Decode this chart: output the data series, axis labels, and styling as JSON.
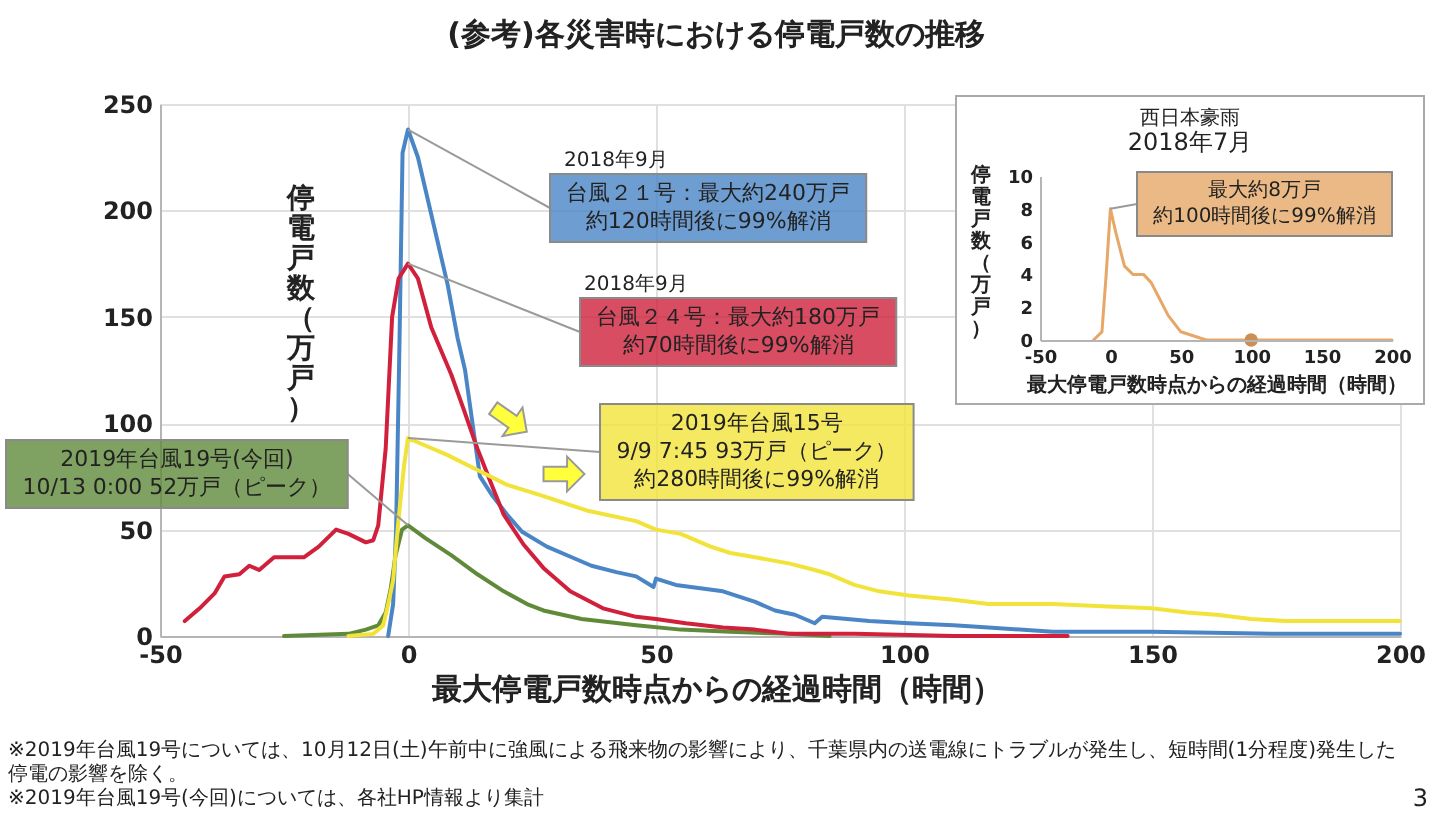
{
  "chart_data": [
    {
      "type": "line",
      "title": "(参考)各災害時における停電戸数の推移",
      "xlabel": "最大停電戸数時点からの経過時間（時間）",
      "ylabel": "停電戸数（万戸）",
      "xlim": [
        -50,
        200
      ],
      "xticks": [
        -50,
        0,
        50,
        100,
        150,
        200
      ],
      "ylim": [
        0,
        250
      ],
      "yticks": [
        0,
        50,
        100,
        150,
        200,
        250
      ],
      "grid": true,
      "annotations": [
        "2018年9月",
        "2018年9月",
        "※2019年台風19号については、10月12日(土)午前中に強風による飛来物の影響により、千葉県内の送電線にトラブルが発生し、短時間(1分程度)発生した停電の影響を除く。",
        "※2019年台風19号(今回)については、各社HP情報より集計",
        "3"
      ],
      "series": [
        {
          "name": "2019年台風19号(今回) 10/13 0:00 52万戸（ピーク）",
          "color": "#5f8a3a",
          "x": [
            -25,
            -12,
            -8.5,
            -6,
            -4.5,
            -3.5,
            -2.5,
            -1.2,
            0,
            3.5,
            8.7,
            14,
            19.3,
            24,
            27.3,
            35,
            46,
            55,
            65,
            77,
            85
          ],
          "values": [
            0,
            1,
            3,
            5,
            11,
            22,
            38,
            50,
            52,
            46,
            38,
            29,
            21,
            15,
            12,
            8,
            5,
            3,
            2,
            1,
            0
          ]
        },
        {
          "name": "台風２１号：最大約240万戸約120時間後に99%解消",
          "color": "#4a86c5",
          "x": [
            -4,
            -3,
            -2.4,
            -1.7,
            -1.1,
            0,
            2,
            4,
            6,
            8,
            10,
            11.5,
            13,
            14.5,
            17,
            20,
            23,
            28,
            33,
            37,
            42,
            46,
            49.5,
            50,
            54,
            63.5,
            70,
            74,
            78,
            82,
            83.5,
            93,
            101,
            110,
            117,
            130,
            150,
            175,
            200
          ],
          "values": [
            0,
            15,
            50,
            140,
            227,
            238,
            225,
            205,
            185,
            165,
            140,
            125,
            100,
            75,
            66,
            57,
            49,
            42,
            37,
            33,
            30,
            28,
            23,
            27,
            24,
            21,
            16,
            12,
            10,
            6,
            9,
            7,
            6,
            5,
            4,
            2,
            2,
            1,
            1
          ]
        },
        {
          "name": "台風２４号：最大約180万戸約70時間後に99%解消",
          "color": "#d0203c",
          "x": [
            -45,
            -42,
            -39,
            -37,
            -34,
            -32,
            -30,
            -27,
            -21,
            -18,
            -14.5,
            -12,
            -8.5,
            -7,
            -6,
            -4.5,
            -3.2,
            -1.9,
            0,
            2,
            4.7,
            8.7,
            11.3,
            14,
            16.7,
            19.3,
            23.3,
            27.3,
            32.7,
            39.3,
            46,
            50,
            56,
            63.5,
            70,
            77,
            90,
            110,
            133
          ],
          "values": [
            7,
            13,
            20,
            28,
            29,
            33,
            31,
            37,
            37,
            42,
            50,
            48,
            44,
            45,
            52,
            88,
            150,
            168,
            175,
            168,
            145,
            123,
            106,
            88,
            72,
            57,
            43,
            32,
            21,
            13,
            9,
            8,
            6,
            4,
            3,
            1,
            1,
            0,
            0
          ]
        },
        {
          "name": "2019年台風15号9/9 7:45 93万戸（ピーク）約280時間後に99%解消",
          "color": "#f2e33a",
          "x": [
            -12,
            -7,
            -5,
            -4,
            -3,
            -1.9,
            -0.8,
            0,
            3,
            8,
            14,
            20,
            27,
            36,
            46,
            50,
            55,
            61,
            65,
            70,
            77,
            82,
            85,
            90,
            95,
            101,
            110,
            117,
            130,
            140,
            150,
            157,
            163,
            170,
            177,
            190,
            200
          ],
          "values": [
            0,
            1,
            5,
            15,
            26,
            55,
            80,
            93,
            90,
            85,
            78,
            71,
            66,
            59,
            54,
            50,
            48,
            42,
            39,
            37,
            34,
            31,
            29,
            24,
            21,
            19,
            17,
            15,
            15,
            14,
            13,
            11,
            10,
            8,
            7,
            7,
            7
          ]
        }
      ]
    },
    {
      "type": "line",
      "title": "西日本豪雨",
      "subtitle": "2018年7月",
      "xlabel": "最大停電戸数時点からの経過時間（時間）",
      "ylabel": "停電戸数（万戸）",
      "xlim": [
        -50,
        200
      ],
      "xticks": [
        -50,
        0,
        50,
        100,
        150,
        200
      ],
      "ylim": [
        0,
        10
      ],
      "yticks": [
        0,
        2,
        4,
        6,
        8,
        10
      ],
      "series": [
        {
          "name": "最大約8万戸約100時間後に99%解消",
          "color": "#e6a767",
          "x": [
            -12,
            -6,
            -3,
            0,
            4,
            10,
            16,
            23.5,
            29,
            35,
            41,
            50,
            68,
            97,
            150,
            200
          ],
          "values": [
            0,
            0.5,
            4,
            8,
            6.5,
            4.5,
            4,
            4,
            3.5,
            2.5,
            1.5,
            0.5,
            0,
            0,
            0,
            0
          ]
        },
        {
          "type": "scatter",
          "color": "#c98f55",
          "x": [
            100
          ],
          "values": [
            0
          ]
        }
      ]
    }
  ]
}
